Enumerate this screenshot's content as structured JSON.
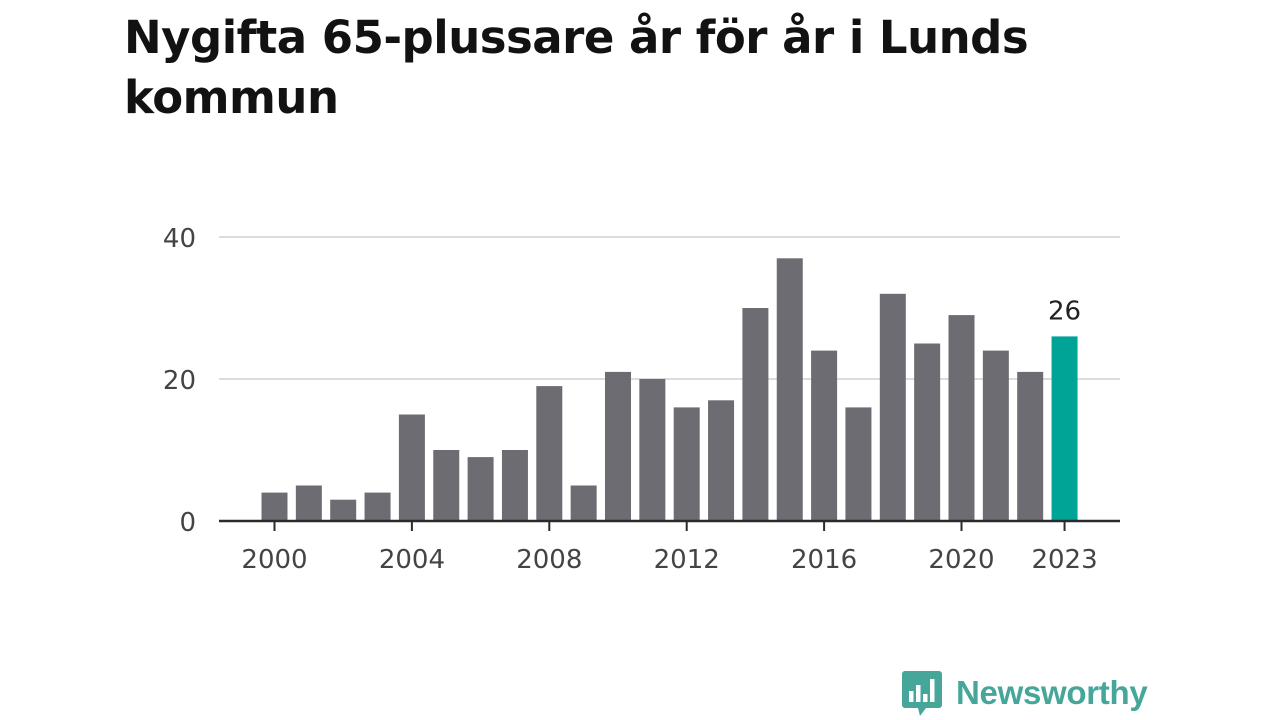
{
  "title": "Nygifta 65-plussare år för år i Lunds kommun",
  "brand": {
    "name": "Newsworthy",
    "icon": "newsworthy-logo-icon",
    "color": "#46a69a"
  },
  "chart_data": {
    "type": "bar",
    "title": "Nygifta 65-plussare år för år i Lunds kommun",
    "xlabel": "",
    "ylabel": "",
    "categories": [
      "2000",
      "2001",
      "2002",
      "2003",
      "2004",
      "2005",
      "2006",
      "2007",
      "2008",
      "2009",
      "2010",
      "2011",
      "2012",
      "2013",
      "2014",
      "2015",
      "2016",
      "2017",
      "2018",
      "2019",
      "2020",
      "2021",
      "2022",
      "2023"
    ],
    "values": [
      4,
      5,
      3,
      4,
      15,
      10,
      9,
      10,
      19,
      5,
      21,
      20,
      16,
      17,
      30,
      37,
      24,
      16,
      32,
      25,
      29,
      24,
      21,
      26
    ],
    "ylim": [
      0,
      40
    ],
    "yticks": [
      0,
      20,
      40
    ],
    "xticks": [
      "2000",
      "2004",
      "2008",
      "2012",
      "2016",
      "2020",
      "2023"
    ],
    "highlight": {
      "category": "2023",
      "label": "26",
      "color": "#00a497"
    },
    "bar_color": "#6d6c72",
    "grid": true,
    "legend": "none"
  }
}
